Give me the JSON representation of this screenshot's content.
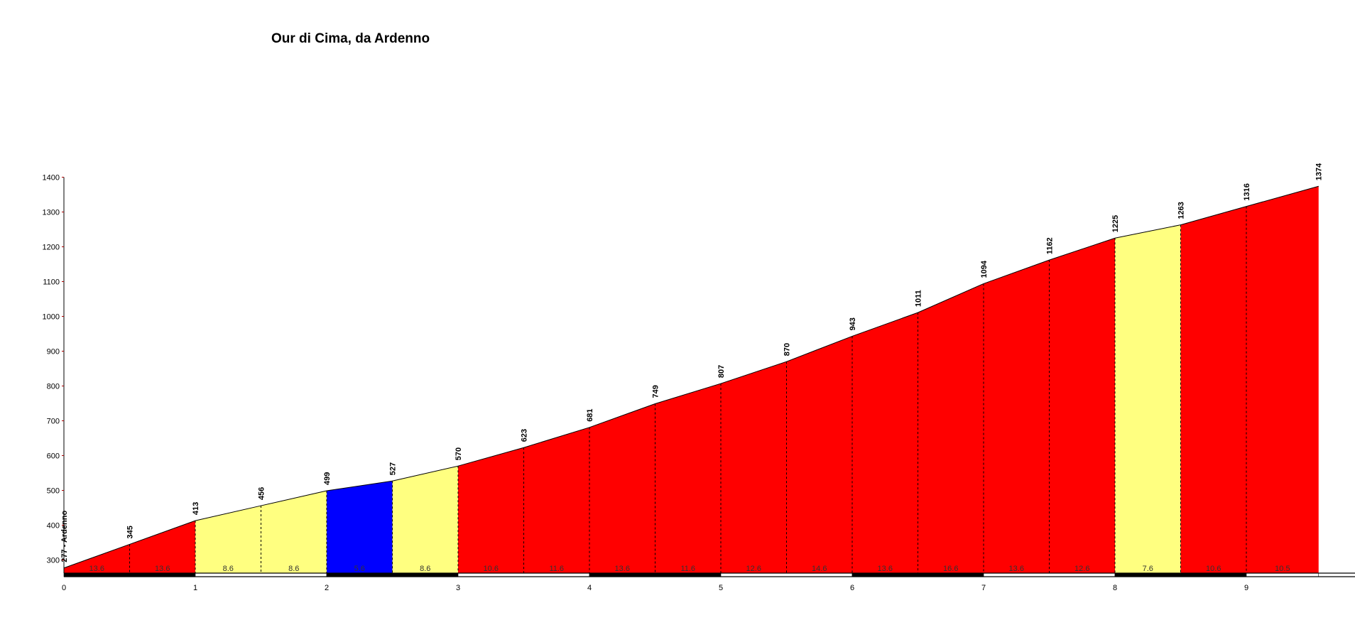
{
  "chart_data": {
    "type": "area",
    "title": "Our di Cima, da Ardenno",
    "xlabel": "",
    "ylabel": "",
    "x_ticks": [
      "0",
      "1",
      "2",
      "3",
      "4",
      "5",
      "6",
      "7",
      "8",
      "9"
    ],
    "y_ticks": [
      "300",
      "400",
      "500",
      "600",
      "700",
      "800",
      "900",
      "1000",
      "1100",
      "1200",
      "1300",
      "1400"
    ],
    "xlim": [
      0,
      9.55
    ],
    "ylim": [
      260,
      1400
    ],
    "distance_km": [
      0,
      0.5,
      1,
      1.5,
      2,
      2.5,
      3,
      3.5,
      4,
      4.5,
      5,
      5.5,
      6,
      6.5,
      7,
      7.5,
      8,
      8.5,
      9,
      9.55
    ],
    "elevation_m": [
      277,
      345,
      413,
      456,
      499,
      527,
      570,
      623,
      681,
      749,
      807,
      870,
      943,
      1011,
      1094,
      1162,
      1225,
      1263,
      1316,
      1374
    ],
    "start_label": "277 - Ardenno",
    "point_labels": [
      "277 - Ardenno",
      "345",
      "413",
      "456",
      "499",
      "527",
      "570",
      "623",
      "681",
      "749",
      "807",
      "870",
      "943",
      "1011",
      "1094",
      "1162",
      "1225",
      "1263",
      "1316",
      "1374"
    ],
    "segment_gradients": [
      "13.6",
      "13.6",
      "8.6",
      "8.6",
      "5.6",
      "8.6",
      "10.6",
      "11.6",
      "13.6",
      "11.6",
      "12.6",
      "14.6",
      "13.6",
      "16.6",
      "13.6",
      "12.6",
      "7.6",
      "10.6",
      "10.5"
    ],
    "gradient_colors": {
      "blue": "#0000ff",
      "yellow": "#ffff80",
      "red": "#ff0000"
    },
    "grid": false
  }
}
